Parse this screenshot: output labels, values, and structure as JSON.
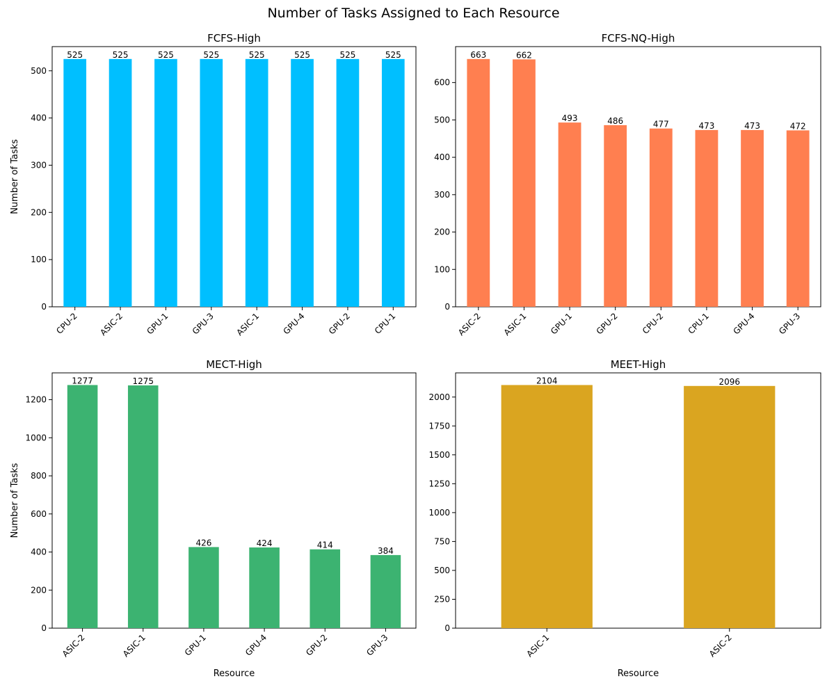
{
  "figure": {
    "title": "Number of Tasks Assigned to Each Resource"
  },
  "chart_data": [
    {
      "type": "bar",
      "title": "FCFS-High",
      "xlabel": "",
      "ylabel": "Number of Tasks",
      "categories": [
        "CPU-2",
        "ASIC-2",
        "GPU-1",
        "GPU-3",
        "ASIC-1",
        "GPU-4",
        "GPU-2",
        "CPU-1"
      ],
      "values": [
        525,
        525,
        525,
        525,
        525,
        525,
        525,
        525
      ],
      "ylim": [
        0,
        551.25
      ],
      "yticks": [
        0,
        100,
        200,
        300,
        400,
        500
      ],
      "color": "#00bfff",
      "grid": false
    },
    {
      "type": "bar",
      "title": "FCFS-NQ-High",
      "xlabel": "",
      "ylabel": "",
      "categories": [
        "ASIC-2",
        "ASIC-1",
        "GPU-1",
        "GPU-2",
        "CPU-2",
        "CPU-1",
        "GPU-4",
        "GPU-3"
      ],
      "values": [
        663,
        662,
        493,
        486,
        477,
        473,
        473,
        472
      ],
      "ylim": [
        0,
        696.15
      ],
      "yticks": [
        0,
        100,
        200,
        300,
        400,
        500,
        600
      ],
      "color": "#ff7f50",
      "grid": false
    },
    {
      "type": "bar",
      "title": "MECT-High",
      "xlabel": "Resource",
      "ylabel": "Number of Tasks",
      "categories": [
        "ASIC-2",
        "ASIC-1",
        "GPU-1",
        "GPU-4",
        "GPU-2",
        "GPU-3"
      ],
      "values": [
        1277,
        1275,
        426,
        424,
        414,
        384
      ],
      "ylim": [
        0,
        1340.85
      ],
      "yticks": [
        0,
        200,
        400,
        600,
        800,
        1000,
        1200
      ],
      "color": "#3cb371",
      "grid": false
    },
    {
      "type": "bar",
      "title": "MEET-High",
      "xlabel": "Resource",
      "ylabel": "",
      "categories": [
        "ASIC-1",
        "ASIC-2"
      ],
      "values": [
        2104,
        2096
      ],
      "ylim": [
        0,
        2209.2
      ],
      "yticks": [
        0,
        250,
        500,
        750,
        1000,
        1250,
        1500,
        1750,
        2000
      ],
      "color": "#daa520",
      "grid": false
    }
  ]
}
